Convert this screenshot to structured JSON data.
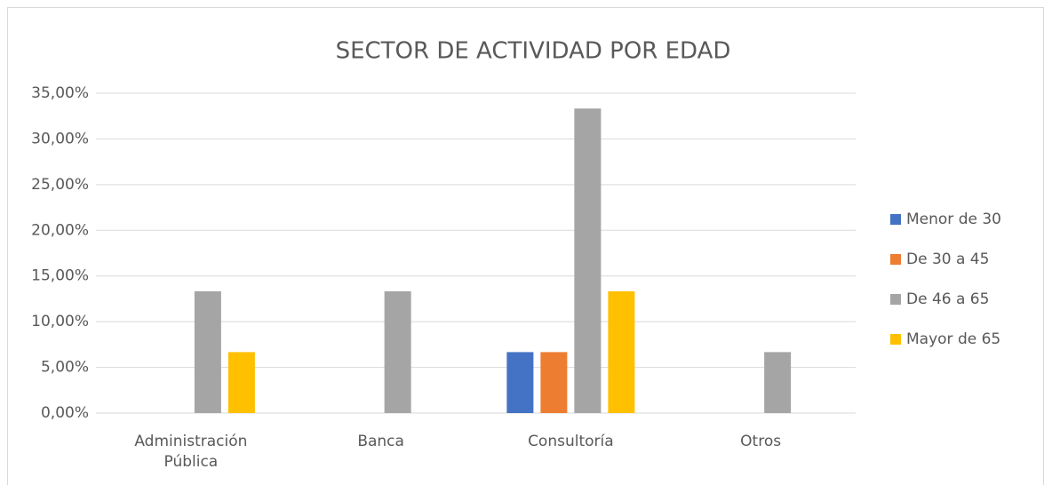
{
  "chart_data": {
    "type": "bar",
    "title": "SECTOR DE ACTIVIDAD POR EDAD",
    "categories": [
      "Administración Pública",
      "Banca",
      "Consultoría",
      "Otros"
    ],
    "series": [
      {
        "name": "Menor de 30",
        "color": "#4472c4",
        "values": [
          0,
          0,
          6.67,
          0
        ]
      },
      {
        "name": "De 30 a 45",
        "color": "#ed7d31",
        "values": [
          0,
          0,
          6.67,
          0
        ]
      },
      {
        "name": "De 46 a 65",
        "color": "#a5a5a5",
        "values": [
          13.33,
          13.33,
          33.33,
          6.67
        ]
      },
      {
        "name": "Mayor de 65",
        "color": "#ffc000",
        "values": [
          6.67,
          0,
          13.33,
          0
        ]
      }
    ],
    "ylim": [
      0,
      35
    ],
    "yticks": [
      {
        "value": 0,
        "label": "0,00%"
      },
      {
        "value": 5,
        "label": "5,00%"
      },
      {
        "value": 10,
        "label": "10,00%"
      },
      {
        "value": 15,
        "label": "15,00%"
      },
      {
        "value": 20,
        "label": "20,00%"
      },
      {
        "value": 25,
        "label": "25,00%"
      },
      {
        "value": 30,
        "label": "30,00%"
      },
      {
        "value": 35,
        "label": "35,00%"
      }
    ],
    "grid": true,
    "legend": "right"
  }
}
